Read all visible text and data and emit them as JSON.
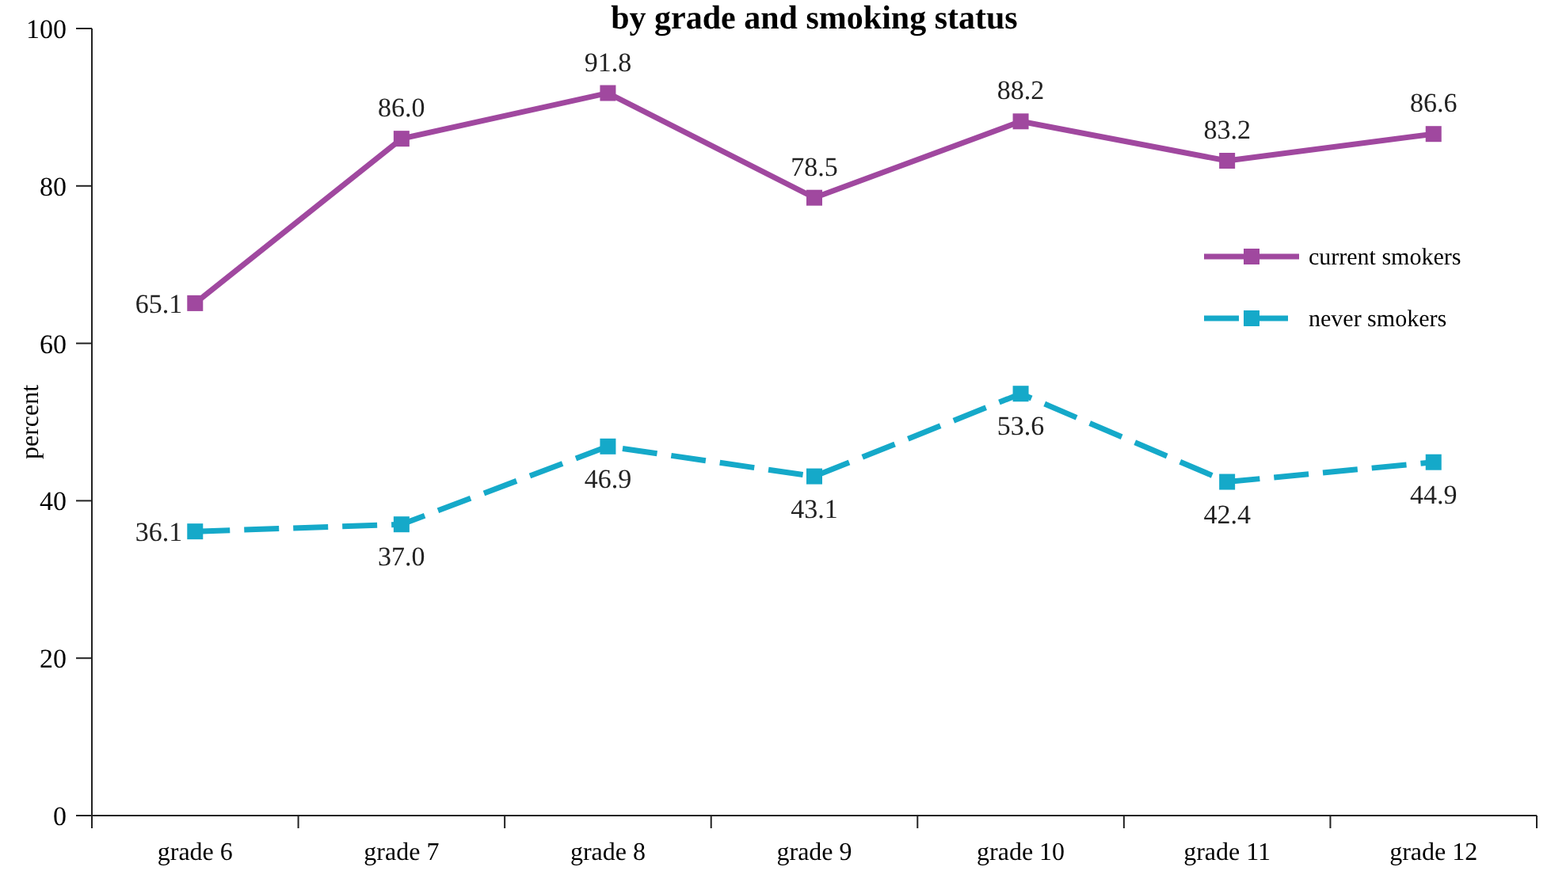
{
  "chart_data": {
    "type": "line",
    "title": "by grade and smoking status",
    "ylabel": "percent",
    "categories": [
      "grade 6",
      "grade 7",
      "grade 8",
      "grade 9",
      "grade 10",
      "grade 11",
      "grade 12"
    ],
    "series": [
      {
        "name": "current smokers",
        "color": "#a0489f",
        "values": [
          65.1,
          86.0,
          91.8,
          78.5,
          88.2,
          83.2,
          86.6
        ],
        "value_labels": [
          "65.1",
          "86.0",
          "91.8",
          "78.5",
          "88.2",
          "83.2",
          "86.6"
        ],
        "line_style": "solid"
      },
      {
        "name": "never smokers",
        "color": "#15a9c9",
        "values": [
          36.1,
          37.0,
          46.9,
          43.1,
          53.6,
          42.4,
          44.9
        ],
        "value_labels": [
          "36.1",
          "37.0",
          "46.9",
          "43.1",
          "53.6",
          "42.4",
          "44.9"
        ],
        "line_style": "dashed"
      }
    ],
    "ylim": [
      0,
      100
    ],
    "yticks": [
      0,
      20,
      40,
      60,
      80,
      100
    ],
    "grid": false,
    "legend": "top right",
    "marker": "square"
  }
}
